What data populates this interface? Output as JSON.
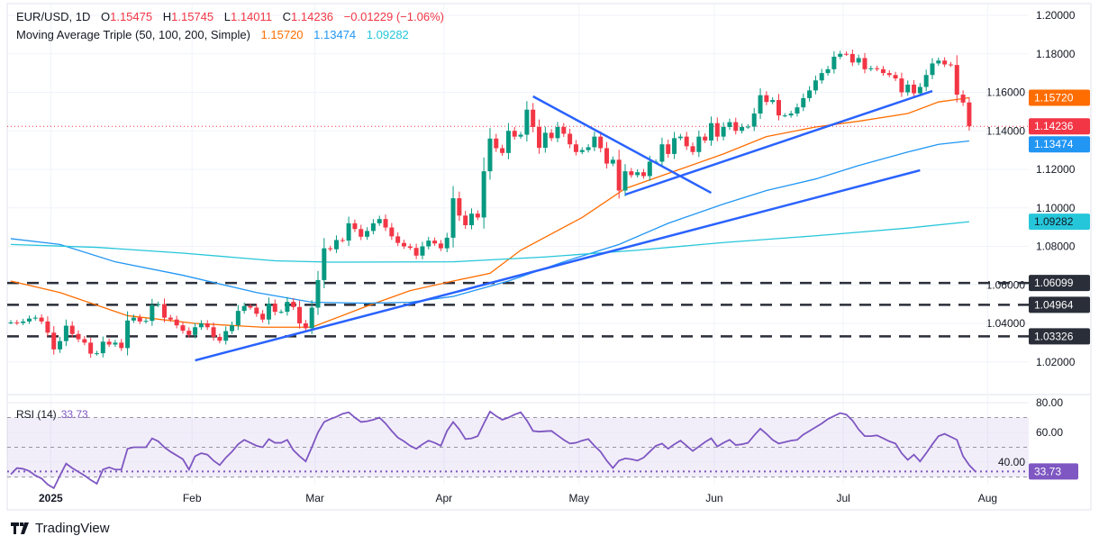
{
  "header": {
    "symbol": "EUR/USD, 1D",
    "open_label": "O",
    "open": "1.15475",
    "high_label": "H",
    "high": "1.15745",
    "low_label": "L",
    "low": "1.14011",
    "close_label": "C",
    "close": "1.14236",
    "change": "−0.01229 (−1.06%)",
    "ma_title": "Moving Average Triple (50, 100, 200, Simple)",
    "ma50": "1.15720",
    "ma100": "1.13474",
    "ma200": "1.09282"
  },
  "rsi_legend": {
    "title": "RSI (14)",
    "value": "33.73"
  },
  "brand": "TradingView",
  "colors": {
    "up": "#089981",
    "down": "#f23645",
    "ma50": "#ff6d00",
    "ma100": "#2196f3",
    "ma200": "#26c6da",
    "trendline": "#2962ff",
    "rsi": "#7e57c2",
    "level": "#2a2e39"
  },
  "chart_data": {
    "type": "candlestick",
    "title": "EUR/USD, 1D",
    "y_axis": {
      "range": [
        1.0,
        1.2
      ],
      "ticks": [
        "1.20000",
        "1.18000",
        "1.16000",
        "1.14000",
        "1.12000",
        "1.10000",
        "1.08000",
        "1.06000",
        "1.04000",
        "1.02000"
      ]
    },
    "x_axis": {
      "labels": [
        "2025",
        "Feb",
        "Mar",
        "Apr",
        "May",
        "Jun",
        "Jul",
        "Aug"
      ]
    },
    "last_bar": {
      "open": 1.15475,
      "high": 1.15745,
      "low": 1.14011,
      "close": 1.14236
    },
    "close": [
      1.0405,
      1.0402,
      1.041,
      1.0425,
      1.043,
      1.041,
      1.0352,
      1.0265,
      1.0308,
      1.0388,
      1.0345,
      1.0318,
      1.03,
      1.0243,
      1.0245,
      1.0305,
      1.029,
      1.03,
      1.0272,
      1.0415,
      1.043,
      1.041,
      1.0413,
      1.0495,
      1.05,
      1.043,
      1.042,
      1.039,
      1.0362,
      1.034,
      1.038,
      1.04,
      1.038,
      1.033,
      1.031,
      1.036,
      1.039,
      1.0465,
      1.049,
      1.0482,
      1.045,
      1.042,
      1.0502,
      1.046,
      1.046,
      1.0512,
      1.0485,
      1.04,
      1.0375,
      1.0482,
      1.0625,
      1.079,
      1.0785,
      1.0833,
      1.083,
      1.092,
      1.089,
      1.085,
      1.088,
      1.092,
      1.0942,
      1.0898,
      1.0852,
      1.0818,
      1.08,
      1.0792,
      1.0752,
      1.08,
      1.083,
      1.0815,
      1.079,
      1.0845,
      1.105,
      1.096,
      1.091,
      1.097,
      1.095,
      1.119,
      1.136,
      1.131,
      1.1285,
      1.14,
      1.137,
      1.138,
      1.151,
      1.142,
      1.1312,
      1.139,
      1.1362,
      1.142,
      1.1385,
      1.133,
      1.129,
      1.13,
      1.1315,
      1.137,
      1.131,
      1.123,
      1.125,
      1.109,
      1.119,
      1.117,
      1.1185,
      1.1165,
      1.124,
      1.124,
      1.133,
      1.128,
      1.1362,
      1.137,
      1.132,
      1.129,
      1.137,
      1.135,
      1.144,
      1.137,
      1.142,
      1.1445,
      1.14,
      1.142,
      1.1422,
      1.149,
      1.1585,
      1.155,
      1.156,
      1.148,
      1.148,
      1.149,
      1.1522,
      1.157,
      1.161,
      1.1662,
      1.17,
      1.172,
      1.1785,
      1.18,
      1.1799,
      1.1755,
      1.1778,
      1.172,
      1.1725,
      1.172,
      1.17,
      1.169,
      1.1672,
      1.16,
      1.164,
      1.1595,
      1.1628,
      1.169,
      1.175,
      1.1765,
      1.1745,
      1.1742,
      1.1588,
      1.1547,
      1.14236
    ],
    "moving_averages": [
      {
        "name": "50",
        "last": 1.1572,
        "points": [
          [
            "2024-12-23",
            1.062
          ],
          [
            "2025-01-02",
            1.056
          ],
          [
            "2025-01-17",
            1.044
          ],
          [
            "2025-02-03",
            1.04
          ],
          [
            "2025-02-18",
            1.038
          ],
          [
            "2025-02-28",
            1.038
          ],
          [
            "2025-03-13",
            1.049
          ],
          [
            "2025-03-24",
            1.057
          ],
          [
            "2025-04-02",
            1.062
          ],
          [
            "2025-04-10",
            1.066
          ],
          [
            "2025-04-17",
            1.078
          ],
          [
            "2025-05-01",
            1.095
          ],
          [
            "2025-05-12",
            1.11
          ],
          [
            "2025-05-22",
            1.119
          ],
          [
            "2025-06-03",
            1.128
          ],
          [
            "2025-06-12",
            1.137
          ],
          [
            "2025-06-24",
            1.142
          ],
          [
            "2025-07-03",
            1.145
          ],
          [
            "2025-07-15",
            1.149
          ],
          [
            "2025-07-22",
            1.155
          ],
          [
            "2025-07-30",
            1.1572
          ]
        ]
      },
      {
        "name": "100",
        "last": 1.13474,
        "points": [
          [
            "2024-12-23",
            1.084
          ],
          [
            "2025-01-02",
            1.081
          ],
          [
            "2025-01-15",
            1.072
          ],
          [
            "2025-01-30",
            1.065
          ],
          [
            "2025-02-17",
            1.056
          ],
          [
            "2025-02-28",
            1.051
          ],
          [
            "2025-03-13",
            1.0505
          ],
          [
            "2025-03-24",
            1.051
          ],
          [
            "2025-04-02",
            1.054
          ],
          [
            "2025-04-15",
            1.062
          ],
          [
            "2025-04-28",
            1.072
          ],
          [
            "2025-05-09",
            1.081
          ],
          [
            "2025-05-21",
            1.092
          ],
          [
            "2025-06-03",
            1.102
          ],
          [
            "2025-06-12",
            1.109
          ],
          [
            "2025-06-24",
            1.115
          ],
          [
            "2025-07-03",
            1.122
          ],
          [
            "2025-07-15",
            1.129
          ],
          [
            "2025-07-22",
            1.133
          ],
          [
            "2025-07-30",
            1.13474
          ]
        ]
      },
      {
        "name": "200",
        "last": 1.09282,
        "points": [
          [
            "2024-12-23",
            1.081
          ],
          [
            "2025-01-10",
            1.0795
          ],
          [
            "2025-01-30",
            1.0765
          ],
          [
            "2025-02-20",
            1.0725
          ],
          [
            "2025-03-05",
            1.0718
          ],
          [
            "2025-04-02",
            1.072
          ],
          [
            "2025-04-23",
            1.0745
          ],
          [
            "2025-05-14",
            1.078
          ],
          [
            "2025-06-03",
            1.082
          ],
          [
            "2025-06-24",
            1.0855
          ],
          [
            "2025-07-15",
            1.0895
          ],
          [
            "2025-07-30",
            1.09282
          ]
        ]
      }
    ],
    "trendlines": [
      {
        "from": [
          "2025-02-03",
          1.0208
        ],
        "to": [
          "2025-07-17",
          1.1195
        ]
      },
      {
        "from": [
          "2025-05-12",
          1.1069
        ],
        "to": [
          "2025-07-21",
          1.1607
        ]
      },
      {
        "from": [
          "2025-04-21",
          1.1579
        ],
        "to": [
          "2025-05-30",
          1.1078
        ]
      }
    ],
    "horizontal_levels": [
      {
        "price": 1.06099,
        "label": "1.06099"
      },
      {
        "price": 1.04964,
        "label": "1.04964"
      },
      {
        "price": 1.03326,
        "label": "1.03326"
      }
    ],
    "price_badges": [
      {
        "label": "1.15720",
        "price": 1.1572,
        "color": "#ff6d00"
      },
      {
        "label": "1.14236",
        "price": 1.14236,
        "color": "#f23645"
      },
      {
        "label": "1.13474",
        "price": 1.13474,
        "color": "#2196f3"
      },
      {
        "label": "1.09282",
        "price": 1.09282,
        "color": "#26c6da"
      }
    ],
    "rsi": {
      "period": 14,
      "levels": [
        70,
        50,
        30
      ],
      "ticks": [
        "80.00",
        "60.00",
        "40.00"
      ],
      "last_label": "33.73",
      "values": [
        31.8,
        36,
        35.5,
        34,
        31,
        29,
        25,
        22.5,
        31,
        39,
        36,
        33.5,
        31,
        28,
        25.5,
        35,
        36.5,
        35,
        35,
        49,
        50,
        50,
        50,
        56,
        54,
        50,
        47,
        44.5,
        42,
        35,
        44,
        46,
        45,
        41,
        38,
        43,
        47,
        52,
        55,
        53,
        51,
        50,
        55.5,
        53,
        53,
        55,
        48,
        44,
        40.5,
        50,
        60,
        67,
        69,
        70.5,
        72.5,
        73.5,
        70,
        67,
        67.5,
        68.5,
        70,
        66,
        61,
        56.5,
        54,
        51,
        49,
        52,
        54.5,
        53,
        51,
        61,
        67,
        62,
        55.5,
        56,
        57.5,
        66,
        74,
        71,
        68.5,
        70,
        72,
        73.5,
        68,
        61,
        60.5,
        60.8,
        61,
        58,
        55,
        52.5,
        53,
        54.5,
        55.5,
        51,
        47,
        41,
        36,
        41,
        42.5,
        42,
        41,
        43,
        47,
        51,
        52.5,
        49,
        52,
        54.5,
        51,
        47.5,
        50.5,
        53.5,
        56,
        50.5,
        53,
        55,
        51.5,
        52,
        53,
        58,
        62.5,
        59,
        55,
        52.5,
        53.5,
        54.5,
        55,
        58.5,
        61,
        63.5,
        66,
        69,
        71,
        73,
        72,
        68,
        62,
        57.5,
        57.5,
        58,
        56,
        54,
        52.5,
        46,
        41.5,
        45,
        40.5,
        46,
        52,
        57.5,
        59,
        57,
        55,
        44,
        38,
        33.73
      ]
    }
  }
}
